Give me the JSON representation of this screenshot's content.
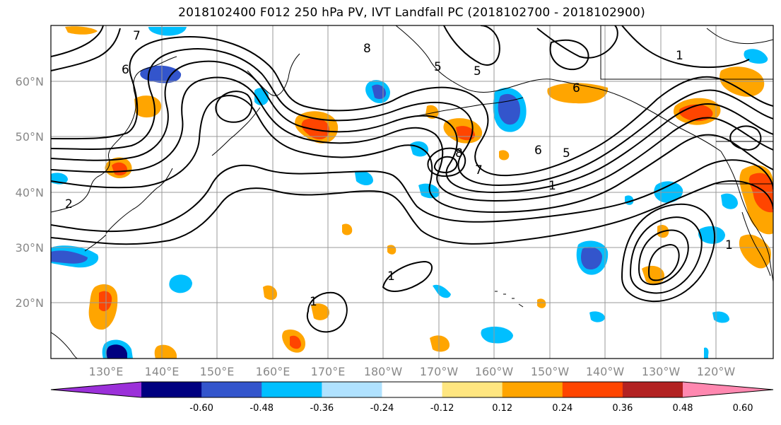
{
  "title": "2018102400 F012 250 hPa PV, IVT Landfall PC (2018102700 - 2018102900)",
  "lat_labels": [
    "60°N",
    "50°N",
    "40°N",
    "30°N",
    "20°N"
  ],
  "lon_labels": [
    "130°E",
    "140°E",
    "150°E",
    "160°E",
    "170°E",
    "180°W",
    "170°W",
    "160°W",
    "150°W",
    "140°W",
    "130°W",
    "120°W"
  ],
  "contour_labels": [
    "7",
    "6",
    "8",
    "5",
    "1",
    "2",
    "8",
    "6",
    "7",
    "5",
    "1",
    "5",
    "6",
    "1",
    "1",
    "1"
  ],
  "colorbar": {
    "ticks": [
      "-0.60",
      "-0.48",
      "-0.36",
      "-0.24",
      "-0.12",
      "0.12",
      "0.24",
      "0.36",
      "0.48",
      "0.60"
    ],
    "colors": [
      "#9b30d9",
      "#000080",
      "#3355cc",
      "#00bfff",
      "#b0e2ff",
      "#ffffff",
      "#ffe680",
      "#ffa500",
      "#ff4500",
      "#b22222",
      "#ff88b0"
    ]
  }
}
